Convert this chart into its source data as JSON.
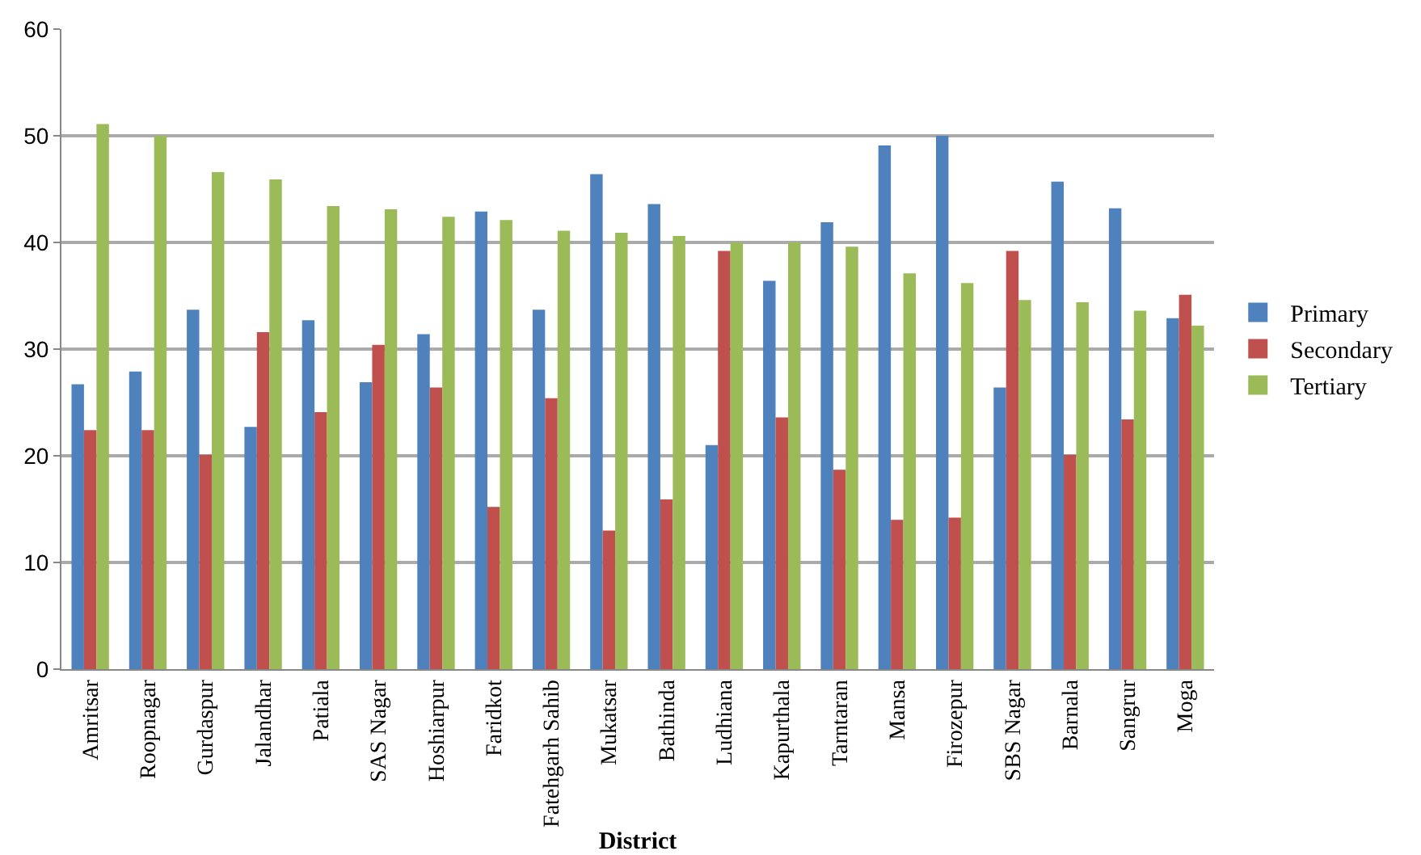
{
  "chart_data": {
    "type": "bar",
    "xlabel": "District",
    "categories": [
      "Amritsar",
      "Roopnagar",
      "Gurdaspur",
      "Jalandhar",
      "Patiala",
      "SAS Nagar",
      "Hoshiarpur",
      "Faridkot",
      "Fatehgarh Sahib",
      "Mukatsar",
      "Bathinda",
      "Ludhiana",
      "Kapurthala",
      "Tarntaran",
      "Mansa",
      "Firozepur",
      "SBS Nagar",
      "Barnala",
      "Sangrur",
      "Moga"
    ],
    "series": [
      {
        "name": "Primary",
        "color": "#4f81bd",
        "values": [
          26.7,
          27.9,
          33.7,
          22.7,
          32.7,
          26.9,
          31.4,
          42.9,
          33.7,
          46.4,
          43.6,
          21.0,
          36.4,
          41.9,
          49.1,
          50.0,
          26.4,
          45.7,
          43.2,
          32.9
        ]
      },
      {
        "name": "Secondary",
        "color": "#c0504d",
        "values": [
          22.4,
          22.4,
          20.1,
          31.6,
          24.1,
          30.4,
          26.4,
          15.2,
          25.4,
          13.0,
          15.9,
          39.2,
          23.6,
          18.7,
          14.0,
          14.2,
          39.2,
          20.1,
          23.4,
          35.1
        ]
      },
      {
        "name": "Tertiary",
        "color": "#9bbb59",
        "values": [
          51.1,
          50.0,
          46.6,
          45.9,
          43.4,
          43.1,
          42.4,
          42.1,
          41.1,
          40.9,
          40.6,
          40.0,
          40.0,
          39.6,
          37.1,
          36.2,
          34.6,
          34.4,
          33.6,
          32.2
        ]
      }
    ],
    "ylim": [
      0,
      60
    ],
    "yticks": [
      0,
      10,
      20,
      30,
      40,
      50,
      60
    ],
    "grid": "y",
    "legend": "right"
  }
}
